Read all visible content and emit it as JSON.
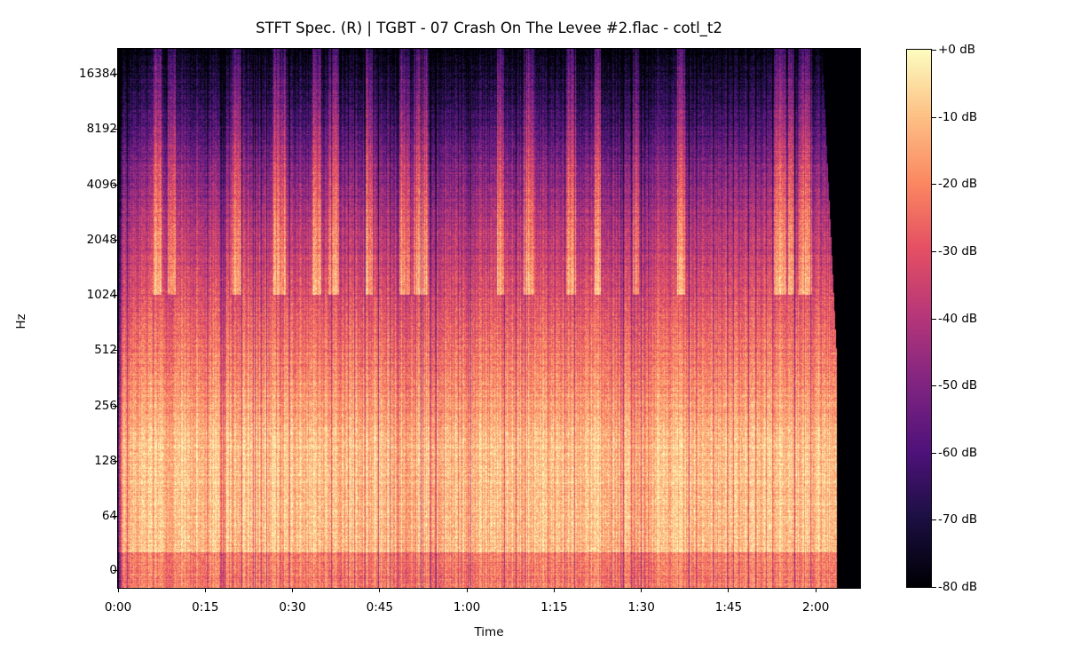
{
  "chart_data": {
    "type": "heatmap",
    "title": "STFT Spec. (R) | TGBT - 07 Crash On The Levee #2.flac - cotl_t2",
    "xlabel": "Time",
    "ylabel": "Hz",
    "x_scale": "time",
    "y_scale": "log",
    "xlim_seconds": [
      0,
      127.6
    ],
    "audio_end_seconds": 123.5,
    "ylim_hz": [
      0,
      22050
    ],
    "x_ticks": [
      {
        "label": "0:00",
        "seconds": 0
      },
      {
        "label": "0:15",
        "seconds": 15
      },
      {
        "label": "0:30",
        "seconds": 30
      },
      {
        "label": "0:45",
        "seconds": 45
      },
      {
        "label": "1:00",
        "seconds": 60
      },
      {
        "label": "1:15",
        "seconds": 75
      },
      {
        "label": "1:30",
        "seconds": 90
      },
      {
        "label": "1:45",
        "seconds": 105
      },
      {
        "label": "2:00",
        "seconds": 120
      }
    ],
    "y_ticks": [
      {
        "label": "0",
        "hz": 0
      },
      {
        "label": "64",
        "hz": 64
      },
      {
        "label": "128",
        "hz": 128
      },
      {
        "label": "256",
        "hz": 256
      },
      {
        "label": "512",
        "hz": 512
      },
      {
        "label": "1024",
        "hz": 1024
      },
      {
        "label": "2048",
        "hz": 2048
      },
      {
        "label": "4096",
        "hz": 4096
      },
      {
        "label": "8192",
        "hz": 8192
      },
      {
        "label": "16384",
        "hz": 16384
      }
    ],
    "colorbar": {
      "colormap": "magma",
      "range_db": [
        -80,
        0
      ],
      "ticks": [
        {
          "label": "+0 dB",
          "db": 0
        },
        {
          "label": "-10 dB",
          "db": -10
        },
        {
          "label": "-20 dB",
          "db": -20
        },
        {
          "label": "-30 dB",
          "db": -30
        },
        {
          "label": "-40 dB",
          "db": -40
        },
        {
          "label": "-50 dB",
          "db": -50
        },
        {
          "label": "-60 dB",
          "db": -60
        },
        {
          "label": "-70 dB",
          "db": -70
        },
        {
          "label": "-80 dB",
          "db": -80
        }
      ]
    },
    "grid": false,
    "legend": "none"
  }
}
